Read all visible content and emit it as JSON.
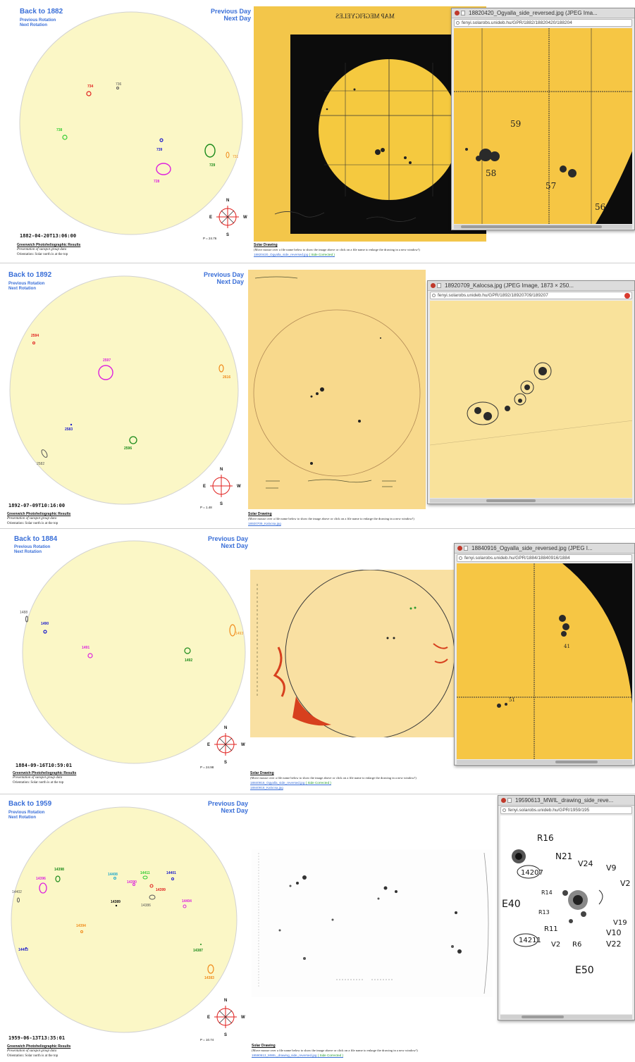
{
  "panels": [
    {
      "nav": {
        "back": "Back to 1882",
        "prev_rotation": "Previous Rotation",
        "next_rotation": "Next Rotation",
        "prev_day": "Previous Day",
        "next_day": "Next Day"
      },
      "datetime": "1882-04-20T13:06:00",
      "results_title": "Greenwich Photoheliographic Results",
      "results_lines": [
        "Presentation of sunspot group data",
        "Orientation: Solar north is at the top"
      ],
      "p_angle": "P = 24.76",
      "groups": [
        {
          "label": "734",
          "color": "#e0201e"
        },
        {
          "label": "736",
          "color": "#555555"
        },
        {
          "label": "738",
          "color": "#33cc33"
        },
        {
          "label": "739",
          "color": "#1a1acc"
        },
        {
          "label": "728",
          "color": "#dd22dd"
        },
        {
          "label": "729",
          "color": "#1a8a1a"
        },
        {
          "label": "731",
          "color": "#f08a1a"
        }
      ],
      "drawing_heading": "MAP MEGFIGYELES",
      "caption_title": "Solar Drawing",
      "caption_text": "(Move mouse over a file name below to show the image above or click on a file name to enlarge the drawing in a new window!)",
      "caption_file": "18820420_Ogyalla_side_reversed.jpg",
      "caption_extra": "( Side Corrected )",
      "popup_title": "18820420_Ogyalla_side_reversed.jpg (JPEG Ima...",
      "popup_url": "fenyi.solarobs.unideb.hu/GPR/1882/18820420/188204",
      "popup_labels": [
        "59",
        "58",
        "57",
        "56"
      ]
    },
    {
      "nav": {
        "back": "Back to 1892",
        "prev_rotation": "Previous Rotation",
        "next_rotation": "Next Rotation",
        "prev_day": "Previous Day",
        "next_day": "Next Day"
      },
      "datetime": "1892-07-09T10:16:00",
      "results_title": "Greenwich Photoheliographic Results",
      "results_lines": [
        "Presentation of sunspot group data",
        "Orientation: Solar north is at the top"
      ],
      "p_angle": "P = 1.48",
      "groups": [
        {
          "label": "2594",
          "color": "#e0201e"
        },
        {
          "label": "2597",
          "color": "#dd22dd"
        },
        {
          "label": "2616",
          "color": "#f08a1a"
        },
        {
          "label": "2583",
          "color": "#1a1acc"
        },
        {
          "label": "2596",
          "color": "#1a8a1a"
        },
        {
          "label": "2582",
          "color": "#555555"
        }
      ],
      "caption_title": "Solar Drawing",
      "caption_text": "(Move mouse over a file name below to show the image above or click on a file name to enlarge the drawing in a new window!)",
      "caption_file": "18920709_Kalocsa.jpg",
      "caption_extra": "",
      "popup_title": "18920709_Kalocsa.jpg (JPEG Image, 1873 × 250...",
      "popup_url": "fenyi.solarobs.unideb.hu/GPR/1892/18920709/189207",
      "popup_labels": []
    },
    {
      "nav": {
        "back": "Back to 1884",
        "prev_rotation": "Previous Rotation",
        "next_rotation": "Next Rotation",
        "prev_day": "Previous Day",
        "next_day": "Next Day"
      },
      "datetime": "1884-09-16T10:59:01",
      "results_title": "Greenwich Photoheliographic Results",
      "results_lines": [
        "Presentation of sunspot group data",
        "Orientation: Solar north is at the top"
      ],
      "p_angle": "P = 24.98",
      "groups": [
        {
          "label": "1488",
          "color": "#555555"
        },
        {
          "label": "1490",
          "color": "#1a1acc"
        },
        {
          "label": "1491",
          "color": "#dd22dd"
        },
        {
          "label": "1492",
          "color": "#1a8a1a"
        },
        {
          "label": "1493",
          "color": "#f08a1a"
        }
      ],
      "caption_title": "Solar Drawing",
      "caption_text": "(Move mouse over a file name below to show the image above or click on a file name to enlarge the drawing in a new window!)",
      "caption_file": "18840916_Ogyalla_side_reversed.jpg",
      "caption_extra": "( Side Corrected )",
      "caption_file2": "18840916_Kalocsa.jpg",
      "popup_title": "18840916_Ogyalla_side_reversed.jpg (JPEG I...",
      "popup_url": "fenyi.solarobs.unideb.hu/GPR/1884/18840916/1884",
      "popup_labels": [
        "41",
        "51"
      ]
    },
    {
      "nav": {
        "back": "Back to 1959",
        "prev_rotation": "Previous Rotation",
        "next_rotation": "Next Rotation",
        "prev_day": "Previous Day",
        "next_day": "Next Day"
      },
      "datetime": "1959-06-13T13:35:01",
      "results_title": "Greenwich Photoheliographic Results",
      "results_lines": [
        "Presentation of sunspot group data",
        "Orientation: Solar north is at the top"
      ],
      "p_angle": "P = 10.74",
      "groups": [
        {
          "label": "14398",
          "color": "#1a8a1a"
        },
        {
          "label": "14396",
          "color": "#dd22dd"
        },
        {
          "label": "14402",
          "color": "#555555"
        },
        {
          "label": "14408",
          "color": "#22aacc"
        },
        {
          "label": "14390",
          "color": "#dd22dd"
        },
        {
          "label": "14411",
          "color": "#33cc33"
        },
        {
          "label": "14401",
          "color": "#1a1acc"
        },
        {
          "label": "14399",
          "color": "#e0201e"
        },
        {
          "label": "14389",
          "color": "#111111"
        },
        {
          "label": "14386",
          "color": "#555555"
        },
        {
          "label": "14404",
          "color": "#dd22dd"
        },
        {
          "label": "14394",
          "color": "#f08a1a"
        },
        {
          "label": "14403",
          "color": "#1a1acc"
        },
        {
          "label": "14387",
          "color": "#1a8a1a"
        },
        {
          "label": "14383",
          "color": "#f08a1a"
        }
      ],
      "caption_title": "Solar Drawing",
      "caption_text": "(Move mouse over a file name below to show the image above or click on a file name to enlarge the drawing in a new window!)",
      "caption_file": "19590613_MWIL_drawing_side_reversed.jpg",
      "caption_extra": "( Side Corrected )",
      "popup_title": "19590613_MWIL_drawing_side_reve...",
      "popup_url": "fenyi.solarobs.unideb.hu/GPR/1959/195",
      "popup_labels": [
        "R16",
        "N21",
        "V24",
        "V9",
        "V2",
        "14207",
        "E40",
        "R14",
        "R13",
        "R11",
        "V2",
        "R6",
        "V10",
        "V19",
        "V22",
        "14211",
        "E50"
      ]
    }
  ],
  "compass": {
    "n": "N",
    "s": "S",
    "e": "E",
    "w": "W"
  },
  "colors": {
    "disk": "#fbf7c6",
    "disk_edge": "#cfcfcf",
    "link": "#3a6fd8",
    "photo_yellow": "#f4c542",
    "paper": "#f7d98a"
  }
}
